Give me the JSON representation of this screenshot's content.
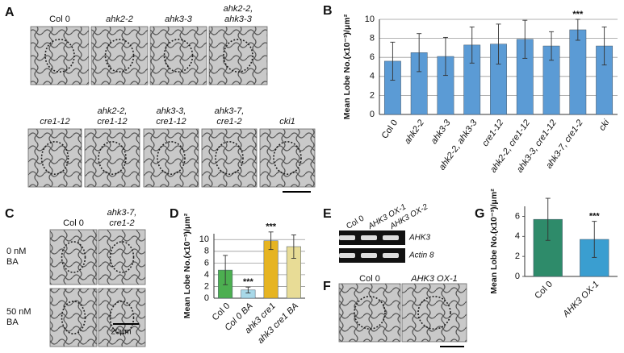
{
  "panel_labels": [
    "A",
    "B",
    "C",
    "D",
    "E",
    "F",
    "G"
  ],
  "panel_a": {
    "images": [
      [
        "Col 0"
      ],
      [
        "ahk2-2"
      ],
      [
        "ahk3-3"
      ],
      [
        "ahk2-2,",
        "ahk3-3"
      ],
      [
        "cre1-12"
      ],
      [
        "ahk2-2,",
        "cre1-12"
      ],
      [
        "ahk3-3,",
        "cre1-12"
      ],
      [
        "ahk3-7,",
        "cre1-2"
      ],
      [
        "cki1"
      ]
    ]
  },
  "panel_c": {
    "columns": [
      [
        "Col 0"
      ],
      [
        "ahk3-7,",
        "cre1-2"
      ]
    ],
    "rows": [
      [
        "0 nM",
        "BA"
      ],
      [
        "50 nM",
        "BA"
      ]
    ],
    "scale": "20μm"
  },
  "panel_e": {
    "columns": [
      "Col 0",
      "AHK3 OX-1",
      "AHK3 OX-2"
    ],
    "bands": [
      "AHK3",
      "Actin 8"
    ]
  },
  "panel_f": {
    "columns": [
      "Col 0",
      "AHK3 OX-1"
    ]
  },
  "chart_data": [
    {
      "type": "bar",
      "ylabel": "Mean Lobe No.(x10⁻³)/μm²",
      "categories": [
        "Col 0",
        "ahk2-2",
        "ahk3-3",
        "ahk2-2, ahk3-3",
        "cre1-12",
        "ahk2-2, cre1-12",
        "ahk3-3, cre1-12",
        "ahk3-7, cre1-2",
        "cki"
      ],
      "values": [
        5.6,
        6.5,
        6.1,
        7.3,
        7.4,
        7.9,
        7.2,
        8.9,
        7.2
      ],
      "errors": [
        2.0,
        2.0,
        2.0,
        1.9,
        2.1,
        2.0,
        1.5,
        1.1,
        2.0
      ],
      "color": "#5b9bd5",
      "ylim": [
        0,
        10
      ],
      "yticks": [
        0,
        2,
        4,
        6,
        8,
        10
      ],
      "grid": true,
      "annotations": [
        {
          "text": "***",
          "category": "ahk3-7, cre1-2"
        }
      ]
    },
    {
      "type": "bar",
      "ylabel": "Mean Lobe No.(x10⁻³)/μm²",
      "categories": [
        "Col 0",
        "Col 0 BA",
        "ahk3 cre1",
        "ahk3 cre1 BA"
      ],
      "values": [
        4.8,
        1.4,
        9.8,
        8.8
      ],
      "errors": [
        2.5,
        0.5,
        1.5,
        2.0
      ],
      "colors": [
        "#4caf50",
        "#a8d8e8",
        "#e6b422",
        "#e8dc96"
      ],
      "ylim": [
        0,
        11
      ],
      "yticks": [
        0,
        2,
        4,
        6,
        8,
        10
      ],
      "grid": true,
      "annotations": [
        {
          "text": "***",
          "category": "Col 0 BA"
        },
        {
          "text": "***",
          "category": "ahk3 cre1"
        }
      ]
    },
    {
      "type": "bar",
      "ylabel": "Mean Lobe No.(x10⁻³)/μm²",
      "categories": [
        "Col 0",
        "AHK3 OX-1"
      ],
      "values": [
        5.7,
        3.7
      ],
      "errors": [
        2.1,
        1.8
      ],
      "colors": [
        "#2e8b6a",
        "#3a9ed0"
      ],
      "ylim": [
        0,
        7
      ],
      "yticks": [
        0,
        2,
        4,
        6
      ],
      "grid": false,
      "annotations": [
        {
          "text": "***",
          "category": "AHK3 OX-1"
        }
      ]
    }
  ]
}
